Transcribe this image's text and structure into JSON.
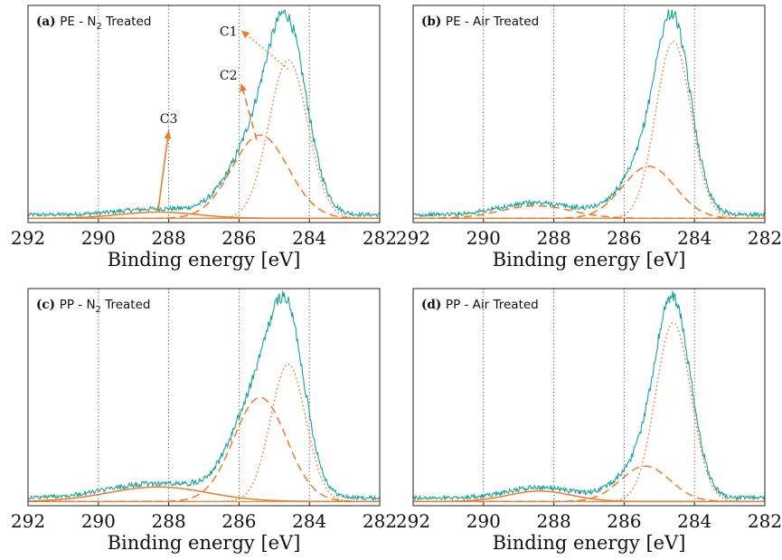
{
  "chart_data": [
    {
      "type": "line",
      "panel_id": "(a)",
      "title_material": "PE - N",
      "title_subscript": "2",
      "title_suffix": " Treated",
      "xlabel": "Binding energy [eV]",
      "ylabel": "",
      "xlim": [
        292,
        282
      ],
      "x_reversed": true,
      "xticks": [
        292,
        290,
        288,
        286,
        284,
        282
      ],
      "gridlines_x": [
        290,
        288,
        286,
        284
      ],
      "grid": "vertical dotted",
      "colors": {
        "spectrum": "#1aa396",
        "fit": "#f07a2a"
      },
      "spectrum_peak_height": 1.0,
      "spectrum_background": 0.02,
      "components": [
        {
          "name": "C1",
          "center": 284.6,
          "height": 0.76,
          "width": 0.55,
          "style": "dotted"
        },
        {
          "name": "C2",
          "center": 285.4,
          "height": 0.4,
          "width": 0.8,
          "style": "dashed"
        },
        {
          "name": "C3",
          "center": 288.3,
          "height": 0.03,
          "width": 1.1,
          "style": "solid"
        }
      ],
      "annotations": [
        {
          "text": "C1",
          "label_x": 286.3,
          "label_y": 0.88,
          "target_x": 284.6,
          "target_y": 0.72,
          "arrow": "dotted"
        },
        {
          "text": "C2",
          "label_x": 286.3,
          "label_y": 0.67,
          "target_x": 285.5,
          "target_y": 0.38,
          "arrow": "dashed"
        },
        {
          "text": "C3",
          "label_x": 288.0,
          "label_y": 0.46,
          "target_x": 288.3,
          "target_y": 0.04,
          "arrow": "solid"
        }
      ]
    },
    {
      "type": "line",
      "panel_id": "(b)",
      "title_material": "PE - Air Treated",
      "title_subscript": "",
      "title_suffix": "",
      "xlabel": "Binding energy [eV]",
      "ylabel": "",
      "xlim": [
        292,
        282
      ],
      "x_reversed": true,
      "xticks": [
        292,
        290,
        288,
        286,
        284,
        282
      ],
      "gridlines_x": [
        290,
        288,
        286,
        284
      ],
      "grid": "vertical dotted",
      "colors": {
        "spectrum": "#1aa396",
        "fit": "#f07a2a"
      },
      "spectrum_peak_height": 1.0,
      "spectrum_background": 0.02,
      "components": [
        {
          "name": "C1",
          "center": 284.6,
          "height": 0.85,
          "width": 0.5,
          "style": "dotted"
        },
        {
          "name": "C2",
          "center": 285.3,
          "height": 0.25,
          "width": 0.75,
          "style": "dashed"
        },
        {
          "name": "C3",
          "center": 288.5,
          "height": 0.06,
          "width": 1.0,
          "style": "dashed"
        }
      ],
      "annotations": []
    },
    {
      "type": "line",
      "panel_id": "(c)",
      "title_material": "PP - N",
      "title_subscript": "2",
      "title_suffix": " Treated",
      "xlabel": "Binding energy [eV]",
      "ylabel": "",
      "xlim": [
        292,
        282
      ],
      "x_reversed": true,
      "xticks": [
        292,
        290,
        288,
        286,
        284,
        282
      ],
      "gridlines_x": [
        290,
        288,
        286,
        284
      ],
      "grid": "vertical dotted",
      "colors": {
        "spectrum": "#1aa396",
        "fit": "#f07a2a"
      },
      "spectrum_peak_height": 1.0,
      "spectrum_background": 0.02,
      "components": [
        {
          "name": "C1",
          "center": 284.6,
          "height": 0.66,
          "width": 0.5,
          "style": "dotted"
        },
        {
          "name": "C2",
          "center": 285.4,
          "height": 0.5,
          "width": 0.75,
          "style": "dashed"
        },
        {
          "name": "C3",
          "center": 288.3,
          "height": 0.07,
          "width": 1.4,
          "style": "solid"
        }
      ],
      "annotations": []
    },
    {
      "type": "line",
      "panel_id": "(d)",
      "title_material": "PP - Air Treated",
      "title_subscript": "",
      "title_suffix": "",
      "xlabel": "Binding energy [eV]",
      "ylabel": "",
      "xlim": [
        292,
        282
      ],
      "x_reversed": true,
      "xticks": [
        292,
        290,
        288,
        286,
        284,
        282
      ],
      "gridlines_x": [
        290,
        288,
        286,
        284
      ],
      "grid": "vertical dotted",
      "colors": {
        "spectrum": "#1aa396",
        "fit": "#f07a2a"
      },
      "spectrum_peak_height": 1.0,
      "spectrum_background": 0.02,
      "components": [
        {
          "name": "C1",
          "center": 284.6,
          "height": 0.86,
          "width": 0.5,
          "style": "dotted"
        },
        {
          "name": "C2",
          "center": 285.4,
          "height": 0.17,
          "width": 0.7,
          "style": "dashed"
        },
        {
          "name": "C3",
          "center": 288.4,
          "height": 0.05,
          "width": 0.9,
          "style": "solid"
        }
      ],
      "annotations": []
    }
  ]
}
